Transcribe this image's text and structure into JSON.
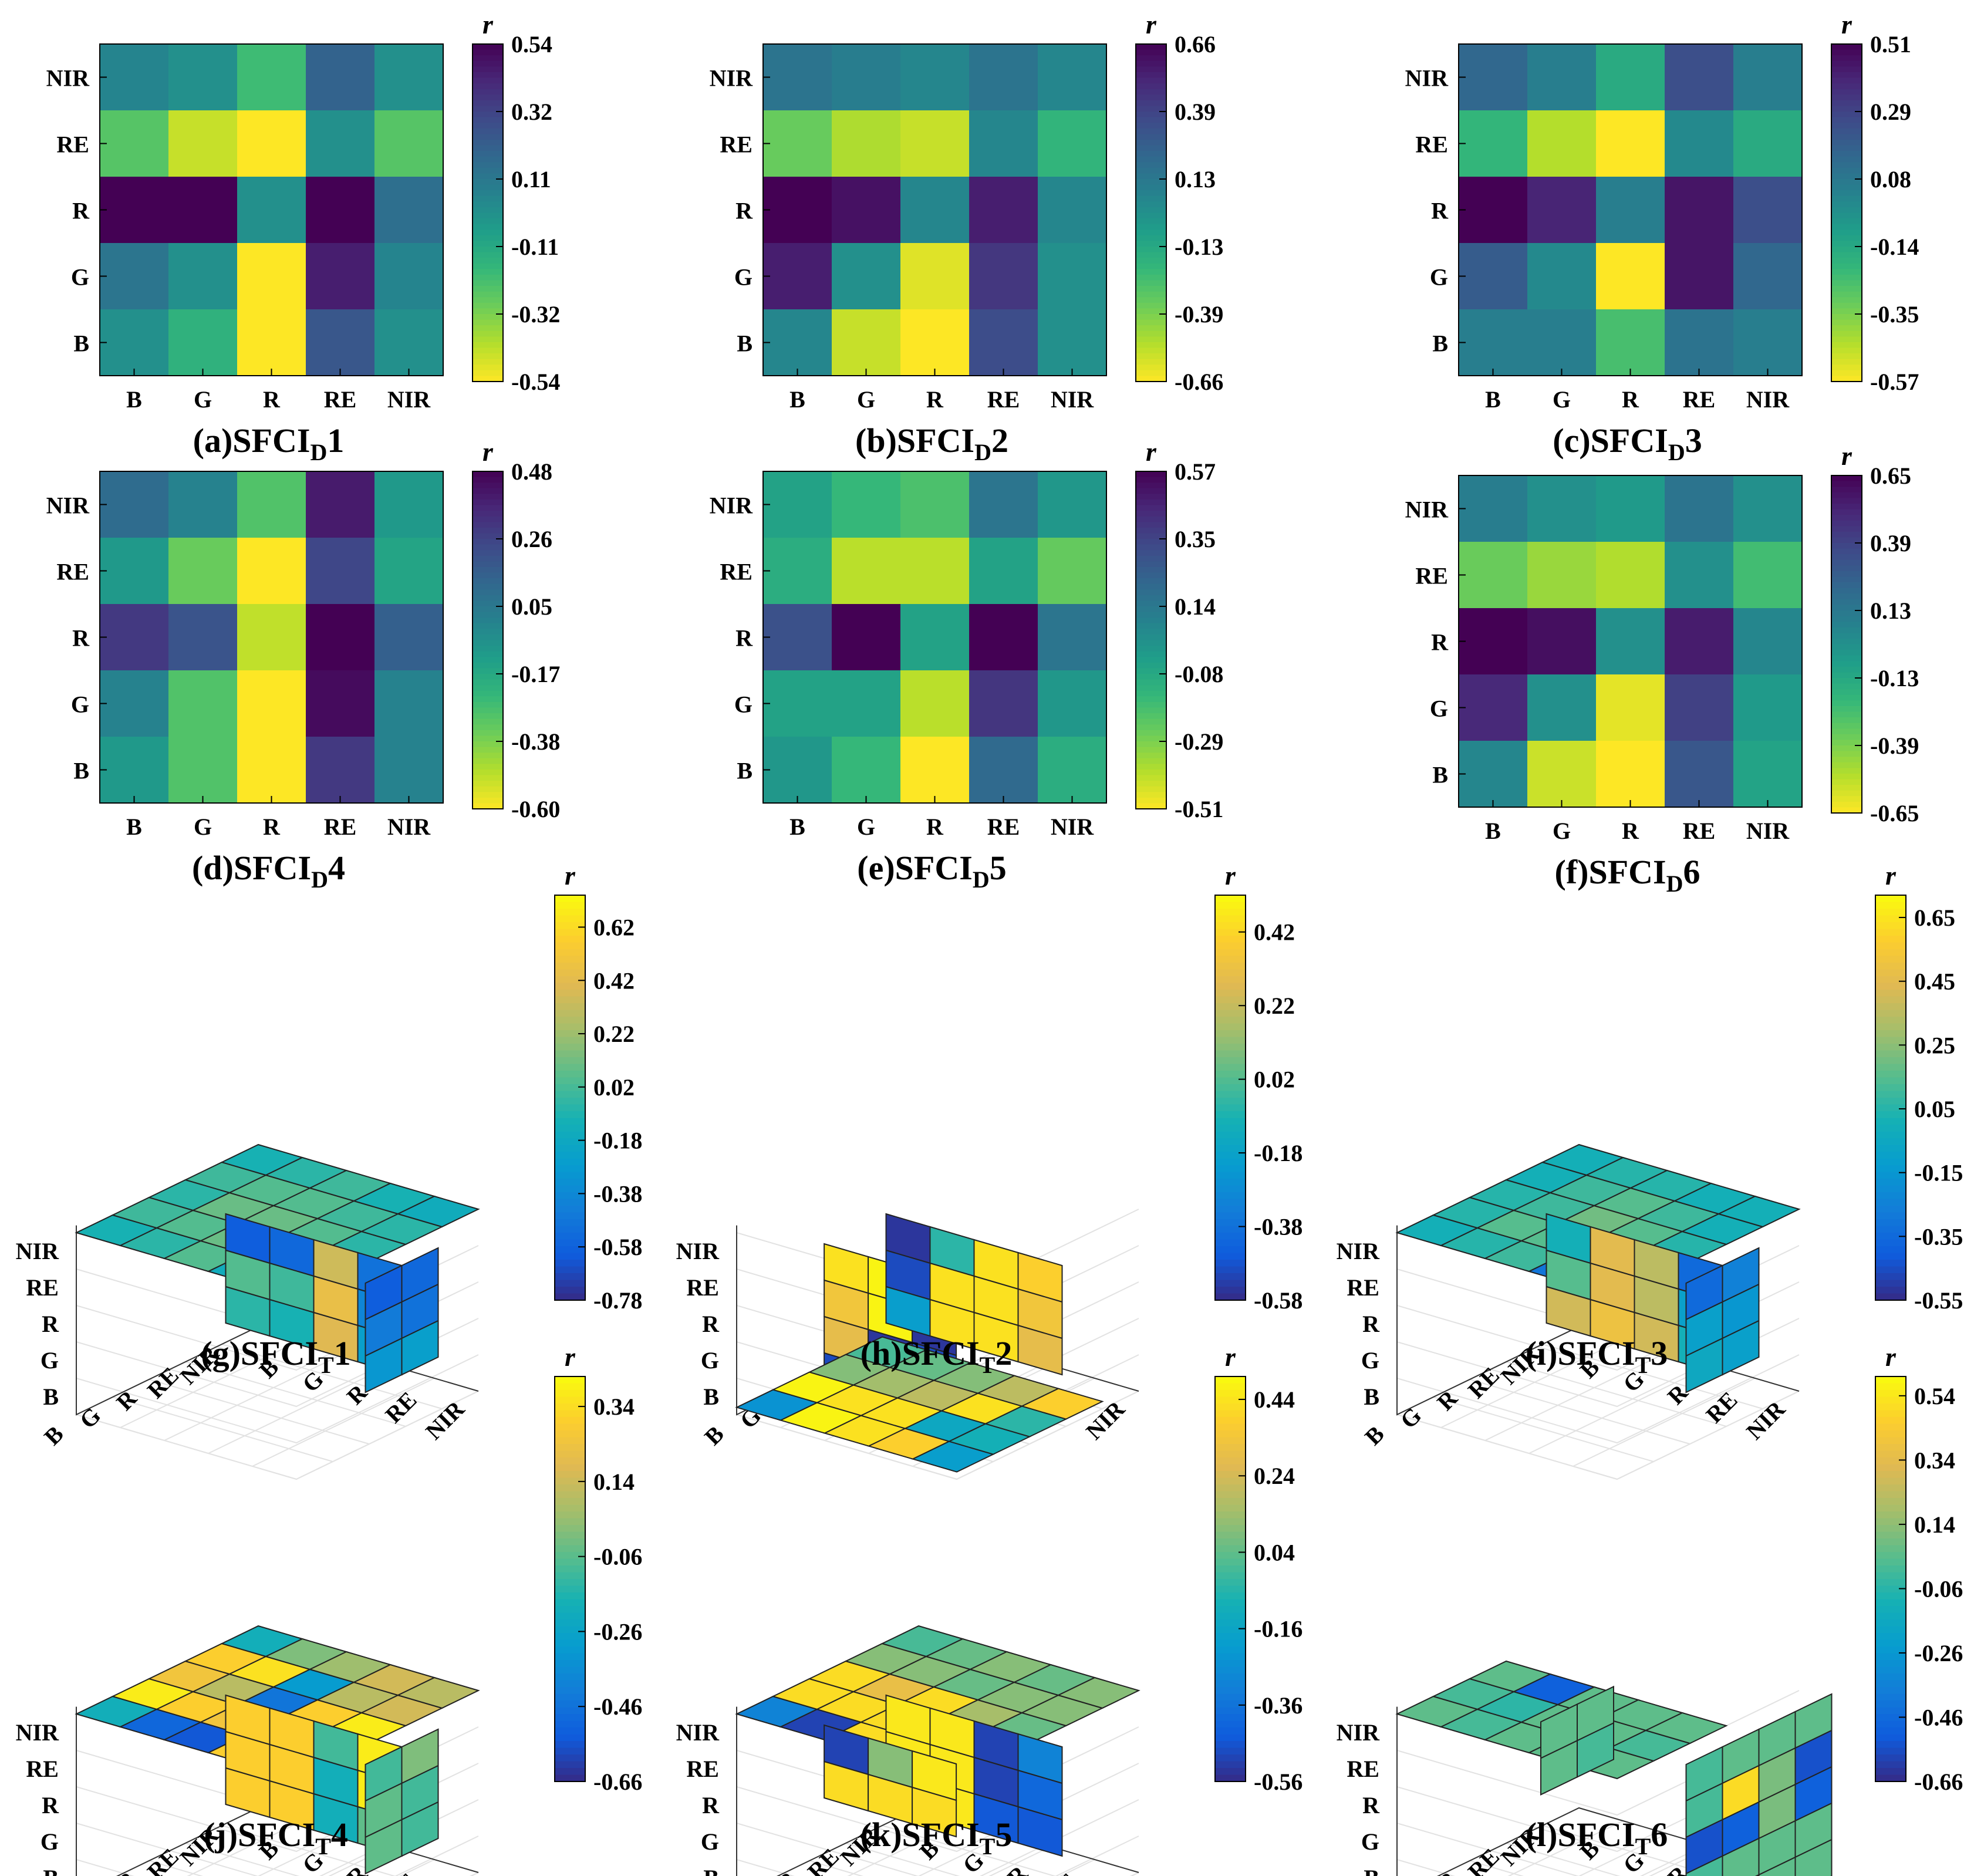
{
  "chart_data": [
    {
      "id": "a",
      "type": "heatmap",
      "title": "(a)SFCI",
      "title_sub": "D",
      "title_tail": "1",
      "x_categories": [
        "B",
        "G",
        "R",
        "RE",
        "NIR"
      ],
      "y_categories": [
        "NIR",
        "RE",
        "R",
        "G",
        "B"
      ],
      "colorbar": {
        "label": "r",
        "min": -0.54,
        "max": 0.54,
        "ticks": [
          "0.54",
          "0.32",
          "0.11",
          "-0.11",
          "-0.32",
          "-0.54"
        ]
      },
      "values": [
        [
          0.05,
          0.0,
          -0.2,
          0.2,
          0.0
        ],
        [
          -0.25,
          -0.45,
          -0.54,
          0.0,
          -0.25
        ],
        [
          0.54,
          0.54,
          0.0,
          0.54,
          0.15
        ],
        [
          0.12,
          0.0,
          -0.54,
          0.45,
          0.05
        ],
        [
          0.0,
          -0.15,
          -0.54,
          0.25,
          0.0
        ]
      ]
    },
    {
      "id": "b",
      "type": "heatmap",
      "title": "(b)SFCI",
      "title_sub": "D",
      "title_tail": "2",
      "x_categories": [
        "B",
        "G",
        "R",
        "RE",
        "NIR"
      ],
      "y_categories": [
        "NIR",
        "RE",
        "R",
        "G",
        "B"
      ],
      "colorbar": {
        "label": "r",
        "min": -0.66,
        "max": 0.66,
        "ticks": [
          "0.66",
          "0.39",
          "0.13",
          "-0.13",
          "-0.39",
          "-0.66"
        ]
      },
      "values": [
        [
          0.15,
          0.1,
          0.05,
          0.15,
          0.05
        ],
        [
          -0.35,
          -0.5,
          -0.55,
          0.05,
          -0.2
        ],
        [
          0.66,
          0.6,
          0.05,
          0.55,
          0.05
        ],
        [
          0.55,
          0.0,
          -0.6,
          0.45,
          0.0
        ],
        [
          0.05,
          -0.55,
          -0.66,
          0.35,
          0.0
        ]
      ]
    },
    {
      "id": "c",
      "type": "heatmap",
      "title": "(c)SFCI",
      "title_sub": "D",
      "title_tail": "3",
      "x_categories": [
        "B",
        "G",
        "R",
        "RE",
        "NIR"
      ],
      "y_categories": [
        "NIR",
        "RE",
        "R",
        "G",
        "B"
      ],
      "colorbar": {
        "label": "r",
        "min": -0.57,
        "max": 0.51,
        "ticks": [
          "0.51",
          "0.29",
          "0.08",
          "-0.14",
          "-0.35",
          "-0.57"
        ]
      },
      "values": [
        [
          0.15,
          0.05,
          -0.15,
          0.25,
          0.05
        ],
        [
          -0.2,
          -0.45,
          -0.57,
          0.0,
          -0.15
        ],
        [
          0.51,
          0.4,
          0.05,
          0.45,
          0.25
        ],
        [
          0.2,
          0.0,
          -0.57,
          0.45,
          0.15
        ],
        [
          0.05,
          0.05,
          -0.25,
          0.1,
          0.05
        ]
      ]
    },
    {
      "id": "d",
      "type": "heatmap",
      "title": "(d)SFCI",
      "title_sub": "D",
      "title_tail": "4",
      "x_categories": [
        "B",
        "G",
        "R",
        "RE",
        "NIR"
      ],
      "y_categories": [
        "NIR",
        "RE",
        "R",
        "G",
        "B"
      ],
      "colorbar": {
        "label": "r",
        "min": -0.6,
        "max": 0.48,
        "ticks": [
          "0.48",
          "0.26",
          "0.05",
          "-0.17",
          "-0.38",
          "-0.60"
        ]
      },
      "values": [
        [
          0.1,
          0.0,
          -0.3,
          0.4,
          -0.1
        ],
        [
          -0.1,
          -0.35,
          -0.6,
          0.25,
          -0.15
        ],
        [
          0.3,
          0.2,
          -0.5,
          0.48,
          0.15
        ],
        [
          0.0,
          -0.3,
          -0.6,
          0.45,
          0.0
        ],
        [
          -0.1,
          -0.3,
          -0.6,
          0.3,
          0.0
        ]
      ]
    },
    {
      "id": "e",
      "type": "heatmap",
      "title": "(e)SFCI",
      "title_sub": "D",
      "title_tail": "5",
      "x_categories": [
        "B",
        "G",
        "R",
        "RE",
        "NIR"
      ],
      "y_categories": [
        "NIR",
        "RE",
        "R",
        "G",
        "B"
      ],
      "colorbar": {
        "label": "r",
        "min": -0.51,
        "max": 0.57,
        "ticks": [
          "0.57",
          "0.35",
          "0.14",
          "-0.08",
          "-0.29",
          "-0.51"
        ]
      },
      "values": [
        [
          -0.05,
          -0.15,
          -0.2,
          0.15,
          0.0
        ],
        [
          -0.1,
          -0.4,
          -0.4,
          -0.05,
          -0.25
        ],
        [
          0.3,
          0.57,
          -0.05,
          0.57,
          0.15
        ],
        [
          -0.05,
          -0.05,
          -0.4,
          0.4,
          0.0
        ],
        [
          0.0,
          -0.15,
          -0.51,
          0.2,
          -0.1
        ]
      ]
    },
    {
      "id": "f",
      "type": "heatmap",
      "title": "(f)SFCI",
      "title_sub": "D",
      "title_tail": "6",
      "x_categories": [
        "B",
        "G",
        "R",
        "RE",
        "NIR"
      ],
      "y_categories": [
        "NIR",
        "RE",
        "R",
        "G",
        "B"
      ],
      "colorbar": {
        "label": "r",
        "min": -0.65,
        "max": 0.65,
        "ticks": [
          "0.65",
          "0.39",
          "0.13",
          "-0.13",
          "-0.39",
          "-0.65"
        ]
      },
      "values": [
        [
          0.1,
          0.0,
          -0.05,
          0.15,
          0.0
        ],
        [
          -0.35,
          -0.45,
          -0.5,
          0.0,
          -0.25
        ],
        [
          0.65,
          0.6,
          0.0,
          0.55,
          0.05
        ],
        [
          0.5,
          0.0,
          -0.6,
          0.4,
          -0.05
        ],
        [
          0.05,
          -0.55,
          -0.65,
          0.3,
          -0.1
        ]
      ]
    },
    {
      "id": "g",
      "type": "3d-slices",
      "title": "(g)SFCI",
      "title_sub": "T",
      "title_tail": "1",
      "axes": [
        "B",
        "G",
        "R",
        "RE",
        "NIR"
      ],
      "colorbar": {
        "label": "r",
        "min": -0.78,
        "max": 0.74,
        "ticks": [
          "0.62",
          "0.42",
          "0.22",
          "0.02",
          "-0.18",
          "-0.38",
          "-0.58",
          "-0.78"
        ]
      },
      "slices": [
        {
          "plane": "top",
          "values": [
            [
              -0.1,
              -0.05,
              0.05,
              -0.15,
              -0.2
            ],
            [
              0.0,
              0.05,
              0.1,
              0.0,
              -0.1
            ],
            [
              -0.05,
              0.1,
              0.1,
              0.05,
              -0.05
            ],
            [
              0.0,
              0.05,
              0.05,
              0.0,
              -0.05
            ],
            [
              -0.1,
              -0.05,
              0.0,
              -0.1,
              -0.15
            ]
          ]
        },
        {
          "plane": "front",
          "values": [
            [
              -0.6,
              -0.55,
              0.35,
              -0.5
            ],
            [
              0.05,
              0.0,
              0.45,
              -0.4
            ],
            [
              -0.05,
              -0.1,
              0.4,
              -0.25
            ]
          ]
        },
        {
          "plane": "side",
          "values": [
            [
              -0.6,
              -0.55
            ],
            [
              -0.45,
              -0.5
            ],
            [
              -0.3,
              -0.25
            ]
          ]
        }
      ]
    },
    {
      "id": "h",
      "type": "3d-slices",
      "title": "(h)SFCI",
      "title_sub": "T",
      "title_tail": "2",
      "axes": [
        "B",
        "G",
        "R",
        "RE",
        "NIR"
      ],
      "colorbar": {
        "label": "r",
        "min": -0.58,
        "max": 0.52,
        "ticks": [
          "0.42",
          "0.22",
          "0.02",
          "-0.18",
          "-0.38",
          "-0.58"
        ]
      },
      "slices": [
        {
          "plane": "back",
          "values": [
            [
              0.45,
              0.5,
              -0.05
            ],
            [
              0.35,
              0.5,
              -0.55
            ],
            [
              0.3,
              -0.55,
              -0.5
            ],
            [
              -0.5,
              -0.45,
              0.45
            ],
            [
              -0.45,
              0.4,
              0.45
            ]
          ]
        },
        {
          "plane": "front",
          "values": [
            [
              -0.55,
              -0.05,
              0.45,
              0.4
            ],
            [
              -0.5,
              0.45,
              0.45,
              0.35
            ],
            [
              -0.2,
              0.45,
              0.45,
              0.3
            ]
          ]
        },
        {
          "plane": "floor",
          "values": [
            [
              -0.25,
              0.5,
              0.45,
              0.4,
              -0.2
            ],
            [
              0.5,
              0.45,
              0.45,
              -0.15,
              -0.1
            ],
            [
              0.1,
              0.15,
              0.2,
              0.45,
              -0.05
            ],
            [
              0.0,
              0.05,
              0.1,
              0.2,
              0.4
            ]
          ]
        }
      ]
    },
    {
      "id": "i",
      "type": "3d-slices",
      "title": "(i)SFCI",
      "title_sub": "T",
      "title_tail": "3",
      "axes": [
        "B",
        "G",
        "R",
        "RE",
        "NIR"
      ],
      "colorbar": {
        "label": "r",
        "min": -0.55,
        "max": 0.72,
        "ticks": [
          "0.65",
          "0.45",
          "0.25",
          "0.05",
          "-0.15",
          "-0.35",
          "-0.55"
        ]
      },
      "slices": [
        {
          "plane": "top",
          "values": [
            [
              0.0,
              0.05,
              0.1,
              -0.3,
              0.0
            ],
            [
              0.05,
              0.15,
              0.15,
              0.1,
              0.0
            ],
            [
              0.05,
              0.1,
              0.2,
              0.15,
              0.05
            ],
            [
              0.0,
              0.1,
              0.15,
              0.1,
              0.0
            ],
            [
              0.0,
              0.05,
              0.05,
              0.0,
              0.0
            ]
          ]
        },
        {
          "plane": "front",
          "values": [
            [
              0.0,
              0.45,
              0.35,
              -0.35
            ],
            [
              0.15,
              0.45,
              0.35,
              -0.1
            ],
            [
              0.4,
              0.5,
              0.4,
              0.0
            ]
          ]
        },
        {
          "plane": "side",
          "values": [
            [
              -0.35,
              -0.25
            ],
            [
              -0.1,
              -0.15
            ],
            [
              -0.05,
              -0.1
            ]
          ]
        }
      ]
    },
    {
      "id": "j",
      "type": "3d-slices",
      "title": "(j)SFCI",
      "title_sub": "T",
      "title_tail": "4",
      "axes": [
        "B",
        "G",
        "R",
        "RE",
        "NIR"
      ],
      "colorbar": {
        "label": "r",
        "min": -0.66,
        "max": 0.42,
        "ticks": [
          "0.34",
          "0.14",
          "-0.06",
          "-0.26",
          "-0.46",
          "-0.66"
        ]
      },
      "slices": [
        {
          "plane": "top",
          "values": [
            [
              -0.2,
              -0.5,
              -0.55,
              0.3,
              0.38
            ],
            [
              0.38,
              0.3,
              0.25,
              0.38,
              0.05
            ],
            [
              0.25,
              0.1,
              -0.45,
              0.3,
              0.38
            ],
            [
              0.3,
              0.35,
              -0.3,
              0.1,
              0.15
            ],
            [
              -0.2,
              0.0,
              0.05,
              0.15,
              0.1
            ]
          ]
        },
        {
          "plane": "front",
          "values": [
            [
              0.3,
              0.3,
              -0.1,
              0.38
            ],
            [
              0.3,
              0.3,
              -0.2,
              0.38
            ],
            [
              0.3,
              0.3,
              -0.2,
              -0.05
            ]
          ]
        },
        {
          "plane": "side",
          "values": [
            [
              -0.1,
              0.0
            ],
            [
              -0.05,
              -0.1
            ],
            [
              -0.05,
              -0.1
            ]
          ]
        }
      ]
    },
    {
      "id": "k",
      "type": "3d-slices",
      "title": "(k)SFCI",
      "title_sub": "T",
      "title_tail": "5",
      "axes": [
        "B",
        "G",
        "R",
        "RE",
        "NIR"
      ],
      "colorbar": {
        "label": "r",
        "min": -0.56,
        "max": 0.5,
        "ticks": [
          "0.44",
          "0.24",
          "0.04",
          "-0.16",
          "-0.36",
          "-0.56"
        ]
      },
      "slices": [
        {
          "plane": "top",
          "values": [
            [
              -0.3,
              -0.5,
              0.42,
              0.1,
              0.0
            ],
            [
              0.42,
              0.42,
              0.42,
              0.42,
              0.1
            ],
            [
              0.42,
              0.3,
              0.42,
              0.15,
              0.05
            ],
            [
              0.1,
              0.1,
              0.05,
              0.1,
              0.1
            ],
            [
              0.0,
              0.05,
              0.1,
              0.05,
              0.1
            ]
          ]
        },
        {
          "plane": "front",
          "values": [
            [
              0.45,
              0.45,
              -0.5,
              -0.3
            ],
            [
              0.45,
              0.45,
              -0.5,
              -0.4
            ],
            [
              0.45,
              0.45,
              -0.45,
              -0.45
            ]
          ]
        },
        {
          "plane": "back",
          "values": [
            [
              -0.5,
              0.1,
              0.45
            ],
            [
              0.42,
              0.42,
              0.42
            ]
          ]
        }
      ]
    },
    {
      "id": "l",
      "type": "3d-slices",
      "title": "(l)SFCI",
      "title_sub": "T",
      "title_tail": "6",
      "axes": [
        "B",
        "G",
        "R",
        "RE",
        "NIR"
      ],
      "colorbar": {
        "label": "r",
        "min": -0.66,
        "max": 0.6,
        "ticks": [
          "0.54",
          "0.34",
          "0.14",
          "-0.06",
          "-0.26",
          "-0.46",
          "-0.66"
        ]
      },
      "slices": [
        {
          "plane": "top",
          "values": [
            [
              0.05,
              0.0,
              0.05,
              0.05,
              0.05
            ],
            [
              0.0,
              -0.05,
              0.05,
              0.05,
              0.0
            ],
            [
              0.05,
              -0.5,
              0.05,
              0.05,
              0.05
            ]
          ]
        },
        {
          "plane": "right",
          "values": [
            [
              0.0,
              0.05,
              0.05,
              0.05
            ],
            [
              0.0,
              0.5,
              0.1,
              -0.55
            ],
            [
              -0.55,
              -0.5,
              0.1,
              -0.5
            ],
            [
              0.0,
              0.05,
              0.05,
              0.05
            ],
            [
              0.0,
              0.05,
              0.05,
              0.05
            ]
          ]
        },
        {
          "plane": "left",
          "values": [
            [
              0.05,
              0.05
            ],
            [
              0.05,
              0.0
            ]
          ]
        }
      ]
    }
  ]
}
